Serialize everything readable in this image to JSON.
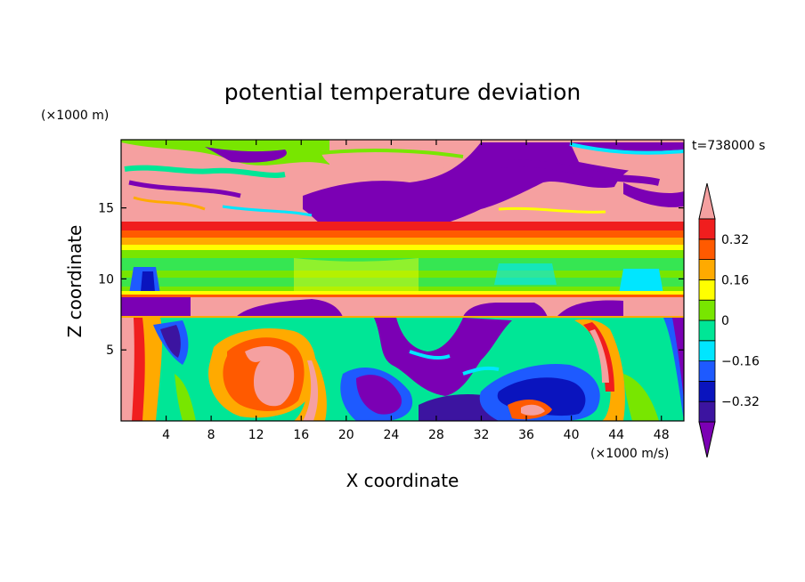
{
  "chart_data": {
    "type": "heatmap",
    "title": "potential temperature deviation",
    "xlabel": "X coordinate",
    "ylabel": "Z coordinate",
    "x_unit": "(×1000 m/s)",
    "y_unit": "(×1000 m)",
    "time_label": "t=738000 s",
    "xlim": [
      0,
      50
    ],
    "ylim": [
      0,
      19.8
    ],
    "x_ticks": [
      4,
      8,
      12,
      16,
      20,
      24,
      28,
      32,
      36,
      40,
      44,
      48
    ],
    "y_ticks": [
      5,
      10,
      15
    ],
    "colorbar": {
      "levels": [
        -0.4,
        -0.32,
        -0.24,
        -0.16,
        -0.08,
        0,
        0.08,
        0.16,
        0.24,
        0.32,
        0.4
      ],
      "tick_labels": [
        "0.32",
        "0.16",
        "0",
        "−0.16",
        "−0.32"
      ],
      "tick_values": [
        0.32,
        0.16,
        0,
        -0.16,
        -0.32
      ],
      "colors": [
        "#7b00b4",
        "#3c14a0",
        "#0a14be",
        "#1e5aff",
        "#00e6ff",
        "#00e696",
        "#78e600",
        "#ffff00",
        "#ffaa00",
        "#ff5a00",
        "#f01e1e",
        "#f5a0a0"
      ],
      "extend": "both"
    },
    "layers": [
      {
        "z_range": [
          0,
          7.5
        ],
        "description": "turbulent eddies"
      },
      {
        "z_range": [
          7.5,
          9
        ],
        "value": "mixed",
        "note": "band of positive/negative blocks"
      },
      {
        "z_range": [
          9,
          12.5
        ],
        "value_approx": 0.05
      },
      {
        "z_range": [
          12.5,
          14
        ],
        "value_approx": 0.35
      },
      {
        "z_range": [
          14,
          19.8
        ],
        "value": "mixed"
      }
    ]
  }
}
